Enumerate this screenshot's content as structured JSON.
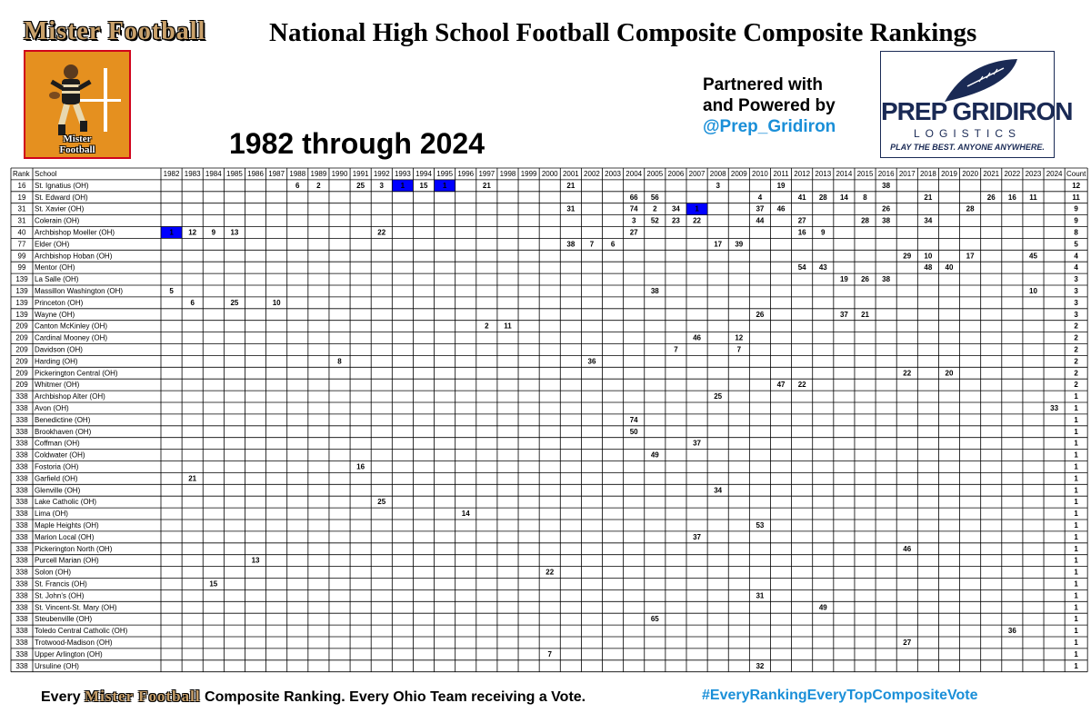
{
  "header": {
    "brand": "Mister Football",
    "title": "National High School Football Composite Composite Rankings",
    "subtitle": "1982 through 2024"
  },
  "logo": {
    "text_line1": "Mister",
    "text_line2": "Football"
  },
  "partner": {
    "line1": "Partnered with",
    "line2": "and Powered by",
    "handle": "@Prep_Gridiron"
  },
  "partner_logo": {
    "name": "PREP GRIDIRON",
    "sub": "LOGISTICS",
    "tagline": "PLAY THE BEST. ANYONE ANYWHERE."
  },
  "footer": {
    "left_prefix": "Every",
    "left_brand": "Mister Football",
    "left_suffix": "Composite Ranking. Every Ohio Team receiving a Vote.",
    "right": "#EveryRankingEveryTopCompositeVote"
  },
  "colors": {
    "highlight_cell": "#0000ff",
    "highlight_school": "#1b1bdb",
    "brand_gold": "#c9a16b",
    "logo_orange": "#e5901f",
    "hashtag_blue": "#1a8fd8"
  },
  "chart_data": {
    "type": "table",
    "columns": {
      "rank": "Rank",
      "school": "School",
      "count": "Count"
    },
    "years": [
      "1982",
      "1983",
      "1984",
      "1985",
      "1986",
      "1987",
      "1988",
      "1989",
      "1990",
      "1991",
      "1992",
      "1993",
      "1994",
      "1995",
      "1996",
      "1997",
      "1998",
      "1999",
      "2000",
      "2001",
      "2002",
      "2003",
      "2004",
      "2005",
      "2006",
      "2007",
      "2008",
      "2009",
      "2010",
      "2011",
      "2012",
      "2013",
      "2014",
      "2015",
      "2016",
      "2017",
      "2018",
      "2019",
      "2020",
      "2021",
      "2022",
      "2023",
      "2024"
    ],
    "rows": [
      {
        "rank": "16",
        "school": "St. Ignatius (OH)",
        "highlight": true,
        "count": "12",
        "values": {
          "1988": "6",
          "1989": "2",
          "1991": "25",
          "1992": "3",
          "1993": "1",
          "1994": "15",
          "1995": "1",
          "1997": "21",
          "2001": "21",
          "2008": "3",
          "2011": "19",
          "2016": "38"
        },
        "number_ones": [
          "1993",
          "1995"
        ]
      },
      {
        "rank": "19",
        "school": "St. Edward (OH)",
        "count": "11",
        "values": {
          "2004": "66",
          "2005": "56",
          "2010": "4",
          "2012": "41",
          "2013": "28",
          "2014": "14",
          "2015": "8",
          "2018": "21",
          "2021": "26",
          "2022": "16",
          "2023": "11"
        }
      },
      {
        "rank": "31",
        "school": "St. Xavier (OH)",
        "highlight": true,
        "count": "9",
        "values": {
          "2001": "31",
          "2004": "74",
          "2005": "2",
          "2006": "34",
          "2007": "1",
          "2010": "37",
          "2011": "46",
          "2016": "26",
          "2020": "28"
        },
        "number_ones": [
          "2007"
        ]
      },
      {
        "rank": "31",
        "school": "Colerain (OH)",
        "count": "9",
        "values": {
          "2004": "3",
          "2005": "52",
          "2006": "23",
          "2007": "22",
          "2010": "44",
          "2012": "27",
          "2015": "28",
          "2016": "38",
          "2018": "34"
        }
      },
      {
        "rank": "40",
        "school": "Archbishop Moeller (OH)",
        "highlight": true,
        "count": "8",
        "values": {
          "1982": "1",
          "1983": "12",
          "1984": "9",
          "1985": "13",
          "1992": "22",
          "2004": "27",
          "2012": "16",
          "2013": "9"
        },
        "number_ones": [
          "1982"
        ]
      },
      {
        "rank": "77",
        "school": "Elder (OH)",
        "count": "5",
        "values": {
          "2001": "38",
          "2002": "7",
          "2003": "6",
          "2008": "17",
          "2009": "39"
        }
      },
      {
        "rank": "99",
        "school": "Archbishop Hoban (OH)",
        "count": "4",
        "values": {
          "2017": "29",
          "2018": "10",
          "2020": "17",
          "2023": "45"
        }
      },
      {
        "rank": "99",
        "school": "Mentor (OH)",
        "count": "4",
        "values": {
          "2012": "54",
          "2013": "43",
          "2018": "48",
          "2019": "40"
        }
      },
      {
        "rank": "139",
        "school": "La Salle (OH)",
        "count": "3",
        "values": {
          "2014": "19",
          "2015": "26",
          "2016": "38"
        }
      },
      {
        "rank": "139",
        "school": "Massillon Washington (OH)",
        "count": "3",
        "values": {
          "1982": "5",
          "2005": "38",
          "2023": "10"
        }
      },
      {
        "rank": "139",
        "school": "Princeton (OH)",
        "count": "3",
        "values": {
          "1983": "6",
          "1985": "25",
          "1987": "10"
        }
      },
      {
        "rank": "139",
        "school": "Wayne (OH)",
        "count": "3",
        "values": {
          "2010": "26",
          "2014": "37",
          "2015": "21"
        }
      },
      {
        "rank": "209",
        "school": "Canton McKinley (OH)",
        "count": "2",
        "values": {
          "1997": "2",
          "1998": "11"
        }
      },
      {
        "rank": "209",
        "school": "Cardinal Mooney (OH)",
        "count": "2",
        "values": {
          "2007": "46",
          "2009": "12"
        }
      },
      {
        "rank": "209",
        "school": "Davidson (OH)",
        "count": "2",
        "values": {
          "2006": "7",
          "2009": "7"
        }
      },
      {
        "rank": "209",
        "school": "Harding (OH)",
        "count": "2",
        "values": {
          "1990": "8",
          "2002": "36"
        }
      },
      {
        "rank": "209",
        "school": "Pickerington Central (OH)",
        "count": "2",
        "values": {
          "2017": "22",
          "2019": "20"
        }
      },
      {
        "rank": "209",
        "school": "Whitmer (OH)",
        "count": "2",
        "values": {
          "2011": "47",
          "2012": "22"
        }
      },
      {
        "rank": "338",
        "school": "Archbishop Alter (OH)",
        "count": "1",
        "values": {
          "2008": "25"
        }
      },
      {
        "rank": "338",
        "school": "Avon (OH)",
        "count": "1",
        "values": {
          "2024": "33"
        }
      },
      {
        "rank": "338",
        "school": "Benedictine (OH)",
        "count": "1",
        "values": {
          "2004": "74"
        }
      },
      {
        "rank": "338",
        "school": "Brookhaven (OH)",
        "count": "1",
        "values": {
          "2004": "50"
        }
      },
      {
        "rank": "338",
        "school": "Coffman (OH)",
        "count": "1",
        "values": {
          "2007": "37"
        }
      },
      {
        "rank": "338",
        "school": "Coldwater (OH)",
        "count": "1",
        "values": {
          "2005": "49"
        }
      },
      {
        "rank": "338",
        "school": "Fostoria (OH)",
        "count": "1",
        "values": {
          "1991": "16"
        }
      },
      {
        "rank": "338",
        "school": "Garfield (OH)",
        "count": "1",
        "values": {
          "1983": "21"
        }
      },
      {
        "rank": "338",
        "school": "Glenville (OH)",
        "count": "1",
        "values": {
          "2008": "34"
        }
      },
      {
        "rank": "338",
        "school": "Lake Catholic (OH)",
        "count": "1",
        "values": {
          "1992": "25"
        }
      },
      {
        "rank": "338",
        "school": "Lima (OH)",
        "count": "1",
        "values": {
          "1996": "14"
        }
      },
      {
        "rank": "338",
        "school": "Maple Heights (OH)",
        "count": "1",
        "values": {
          "2010": "53"
        }
      },
      {
        "rank": "338",
        "school": "Marion Local (OH)",
        "count": "1",
        "values": {
          "2007": "37"
        }
      },
      {
        "rank": "338",
        "school": "Pickerington North (OH)",
        "count": "1",
        "values": {
          "2017": "46"
        }
      },
      {
        "rank": "338",
        "school": "Purcell Marian (OH)",
        "count": "1",
        "values": {
          "1986": "13"
        }
      },
      {
        "rank": "338",
        "school": "Solon (OH)",
        "count": "1",
        "values": {
          "2000": "22"
        }
      },
      {
        "rank": "338",
        "school": "St. Francis (OH)",
        "count": "1",
        "values": {
          "1984": "15"
        }
      },
      {
        "rank": "338",
        "school": "St. John's (OH)",
        "count": "1",
        "values": {
          "2010": "31"
        }
      },
      {
        "rank": "338",
        "school": "St. Vincent-St. Mary (OH)",
        "count": "1",
        "values": {
          "2013": "49"
        }
      },
      {
        "rank": "338",
        "school": "Steubenville (OH)",
        "count": "1",
        "values": {
          "2005": "65"
        }
      },
      {
        "rank": "338",
        "school": "Toledo Central Catholic (OH)",
        "count": "1",
        "values": {
          "2022": "36"
        }
      },
      {
        "rank": "338",
        "school": "Trotwood-Madison (OH)",
        "count": "1",
        "values": {
          "2017": "27"
        }
      },
      {
        "rank": "338",
        "school": "Upper Arlington (OH)",
        "count": "1",
        "values": {
          "2000": "7"
        }
      },
      {
        "rank": "338",
        "school": "Ursuline (OH)",
        "count": "1",
        "values": {
          "2010": "32"
        }
      }
    ]
  }
}
